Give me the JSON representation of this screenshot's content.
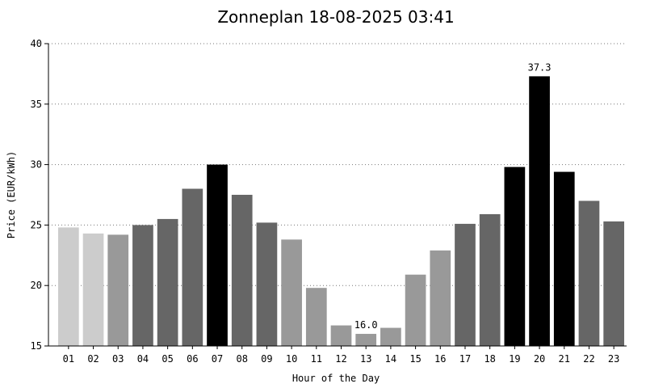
{
  "chart_data": {
    "type": "bar",
    "title": "Zonneplan 18-08-2025 03:41",
    "xlabel": "Hour of the Day",
    "ylabel": "Price (EUR/kWh)",
    "ylim": [
      15,
      40
    ],
    "yticks": [
      "15",
      "20",
      "25",
      "30",
      "35",
      "40"
    ],
    "grid": "horizontal-dotted",
    "categories": [
      "01",
      "02",
      "03",
      "04",
      "05",
      "06",
      "07",
      "08",
      "09",
      "10",
      "11",
      "12",
      "13",
      "14",
      "15",
      "16",
      "17",
      "18",
      "19",
      "20",
      "21",
      "22",
      "23"
    ],
    "values": [
      24.8,
      24.3,
      24.2,
      25.0,
      25.5,
      28.0,
      30.0,
      27.5,
      25.2,
      23.8,
      19.8,
      16.7,
      16.0,
      16.5,
      20.9,
      22.9,
      25.1,
      25.9,
      29.8,
      37.3,
      29.4,
      27.0,
      25.3
    ],
    "colors": [
      "#cccccc",
      "#cccccc",
      "#999999",
      "#666666",
      "#666666",
      "#666666",
      "#000000",
      "#666666",
      "#666666",
      "#999999",
      "#999999",
      "#999999",
      "#999999",
      "#999999",
      "#999999",
      "#999999",
      "#666666",
      "#666666",
      "#000000",
      "#000000",
      "#000000",
      "#666666",
      "#666666"
    ],
    "data_labels": [
      {
        "category": "13",
        "text": "16.0"
      },
      {
        "category": "20",
        "text": "37.3"
      }
    ]
  }
}
